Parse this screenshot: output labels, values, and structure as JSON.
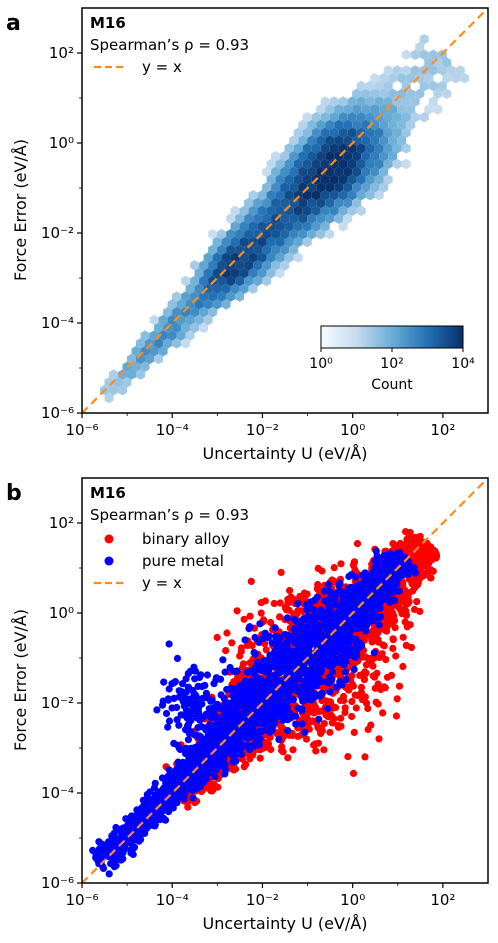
{
  "figure": {
    "chart_data": [
      {
        "type": "heatmap",
        "subtype": "hexbin",
        "panel_label": "a",
        "model_label": "M16",
        "annotation": "Spearman’s ρ = 0.93",
        "xlabel": "Uncertainty U (eV/Å)",
        "ylabel": "Force Error (eV/Å)",
        "xscale": "log",
        "yscale": "log",
        "xlim": [
          1e-06,
          1000.0
        ],
        "ylim": [
          1e-06,
          1000.0
        ],
        "xticks": [
          {
            "value": 1e-06,
            "label": "10⁻⁶"
          },
          {
            "value": 0.0001,
            "label": "10⁻⁴"
          },
          {
            "value": 0.01,
            "label": "10⁻²"
          },
          {
            "value": 1,
            "label": "10⁰"
          },
          {
            "value": 100,
            "label": "10²"
          }
        ],
        "yticks": [
          {
            "value": 1e-06,
            "label": "10⁻⁶"
          },
          {
            "value": 0.0001,
            "label": "10⁻⁴"
          },
          {
            "value": 0.01,
            "label": "10⁻²"
          },
          {
            "value": 1,
            "label": "10⁰"
          },
          {
            "value": 100,
            "label": "10²"
          }
        ],
        "reference_line": {
          "label": "y = x",
          "color": "#ff8c1a",
          "style": "dashed"
        },
        "legend_position": "top-left",
        "colormap": [
          "#f7fbff",
          "#c6dbef",
          "#6baed6",
          "#2171b5",
          "#08306b"
        ],
        "colorbar": {
          "label": "Count",
          "scale": "log",
          "range": [
            1,
            10000.0
          ],
          "ticks": [
            {
              "value": 1,
              "label": "10⁰"
            },
            {
              "value": 100,
              "label": "10²"
            },
            {
              "value": 10000.0,
              "label": "10⁴"
            }
          ],
          "position": "lower-right"
        },
        "density_clusters": [
          {
            "x": 0.001,
            "y": 0.001,
            "count": 1000
          },
          {
            "x": 0.3,
            "y": 0.3,
            "count": 10000
          },
          {
            "x": 0.03,
            "y": 0.03,
            "count": 3000
          }
        ],
        "extent": {
          "x_min": 1e-05,
          "x_max": 50,
          "y_min": 1e-06,
          "y_max": 30
        }
      },
      {
        "type": "scatter",
        "panel_label": "b",
        "model_label": "M16",
        "annotation": "Spearman’s ρ = 0.93",
        "xlabel": "Uncertainty U (eV/Å)",
        "ylabel": "Force Error (eV/Å)",
        "xscale": "log",
        "yscale": "log",
        "xlim": [
          1e-06,
          1000.0
        ],
        "ylim": [
          1e-06,
          1000.0
        ],
        "xticks": [
          {
            "value": 1e-06,
            "label": "10⁻⁶"
          },
          {
            "value": 0.0001,
            "label": "10⁻⁴"
          },
          {
            "value": 0.01,
            "label": "10⁻²"
          },
          {
            "value": 1,
            "label": "10⁰"
          },
          {
            "value": 100,
            "label": "10²"
          }
        ],
        "yticks": [
          {
            "value": 1e-06,
            "label": "10⁻⁶"
          },
          {
            "value": 0.0001,
            "label": "10⁻⁴"
          },
          {
            "value": 0.01,
            "label": "10⁻²"
          },
          {
            "value": 1,
            "label": "10⁰"
          },
          {
            "value": 100,
            "label": "10²"
          }
        ],
        "legend_position": "top-left",
        "reference_line": {
          "label": "y = x",
          "color": "#ff8c1a",
          "style": "dashed"
        },
        "series": [
          {
            "name": "binary alloy",
            "color": "#ff0000",
            "x_range": [
              5e-05,
              70
            ],
            "y_range": [
              1e-05,
              30
            ],
            "n_points": 6000
          },
          {
            "name": "pure metal",
            "color": "#0000ff",
            "x_range": [
              1e-05,
              30
            ],
            "y_range": [
              1e-06,
              15
            ],
            "n_points": 6000
          }
        ]
      }
    ]
  }
}
